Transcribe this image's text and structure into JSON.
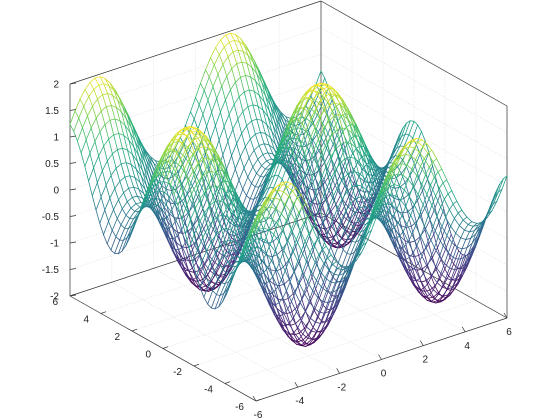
{
  "chart_data": {
    "type": "surface-mesh",
    "title": "",
    "xlabel": "",
    "ylabel": "",
    "zlabel": "",
    "x_range": [
      -6,
      6
    ],
    "y_range": [
      -6,
      6
    ],
    "z_range": [
      -2,
      2
    ],
    "x_ticks": [
      "-6",
      "-4",
      "-2",
      "0",
      "2",
      "4",
      "6"
    ],
    "y_ticks": [
      "-6",
      "-4",
      "-2",
      "0",
      "2",
      "4",
      "6"
    ],
    "z_ticks": [
      "-2",
      "-1.5",
      "-1",
      "-0.5",
      "0",
      "0.5",
      "1",
      "1.5",
      "2"
    ],
    "grid": true,
    "colormap": "viridis",
    "mesh_resolution": 50,
    "surface": {
      "description_formula": "z = sin(x) + cos(y)",
      "z_min": -2,
      "z_max": 2
    }
  }
}
